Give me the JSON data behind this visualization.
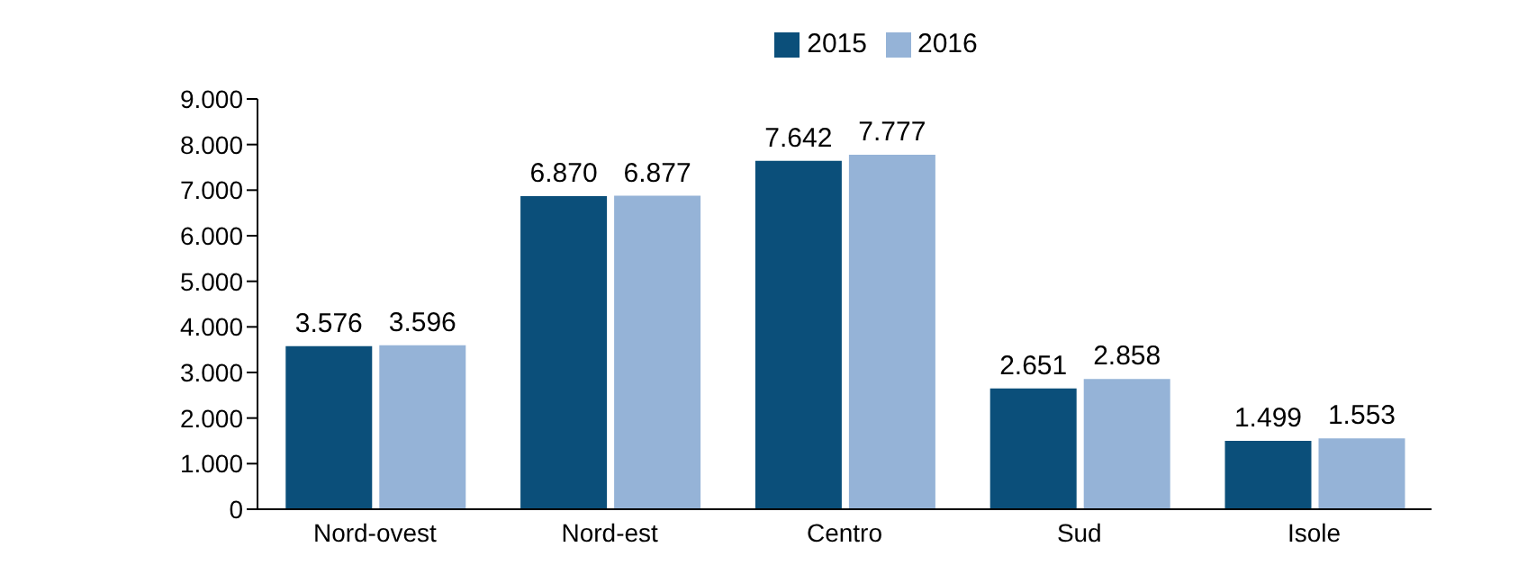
{
  "chart_data": {
    "type": "bar",
    "categories": [
      "Nord-ovest",
      "Nord-est",
      "Centro",
      "Sud",
      "Isole"
    ],
    "series": [
      {
        "name": "2015",
        "color": "#0b4f7a",
        "values": [
          3576,
          6870,
          7642,
          2651,
          1499
        ],
        "value_labels": [
          "3.576",
          "6.870",
          "7.642",
          "2.651",
          "1.499"
        ]
      },
      {
        "name": "2016",
        "color": "#95b3d7",
        "values": [
          3596,
          6877,
          7777,
          2858,
          1553
        ],
        "value_labels": [
          "3.596",
          "6.877",
          "7.777",
          "2.858",
          "1.553"
        ]
      }
    ],
    "ylim": [
      0,
      9000
    ],
    "yticks": [
      {
        "value": 0,
        "label": "0"
      },
      {
        "value": 1000,
        "label": "1.000"
      },
      {
        "value": 2000,
        "label": "2.000"
      },
      {
        "value": 3000,
        "label": "3.000"
      },
      {
        "value": 4000,
        "label": "4.000"
      },
      {
        "value": 5000,
        "label": "5.000"
      },
      {
        "value": 6000,
        "label": "6.000"
      },
      {
        "value": 7000,
        "label": "7.000"
      },
      {
        "value": 8000,
        "label": "8.000"
      },
      {
        "value": 9000,
        "label": "9.000"
      }
    ],
    "grid": false,
    "legend": "top"
  }
}
